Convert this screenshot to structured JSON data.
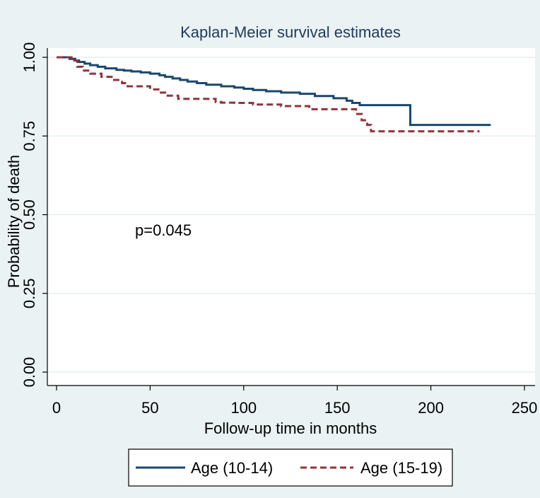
{
  "chart_data": {
    "type": "line",
    "title": "Kaplan-Meier survival estimates",
    "xlabel": "Follow-up time in months",
    "ylabel": "Probability of death",
    "xlim": [
      0,
      250
    ],
    "ylim": [
      0,
      1
    ],
    "x_ticks": [
      0,
      50,
      100,
      150,
      200,
      250
    ],
    "y_ticks": [
      0.0,
      0.25,
      0.5,
      0.75,
      1.0
    ],
    "x_tick_labels": [
      "0",
      "50",
      "100",
      "150",
      "200",
      "250"
    ],
    "y_tick_labels": [
      "0.00",
      "0.25",
      "0.50",
      "0.75",
      "1.00"
    ],
    "annotation": "p=0.045",
    "legend_position": "bottom",
    "series": [
      {
        "name": "Age (10-14)",
        "color": "#1a476f",
        "style": "solid",
        "steps": [
          [
            0,
            1.0
          ],
          [
            7,
            0.995
          ],
          [
            10,
            0.99
          ],
          [
            12,
            0.985
          ],
          [
            15,
            0.98
          ],
          [
            18,
            0.975
          ],
          [
            22,
            0.97
          ],
          [
            26,
            0.965
          ],
          [
            32,
            0.96
          ],
          [
            36,
            0.958
          ],
          [
            40,
            0.955
          ],
          [
            45,
            0.952
          ],
          [
            50,
            0.948
          ],
          [
            55,
            0.943
          ],
          [
            58,
            0.938
          ],
          [
            62,
            0.933
          ],
          [
            66,
            0.928
          ],
          [
            70,
            0.923
          ],
          [
            75,
            0.918
          ],
          [
            80,
            0.913
          ],
          [
            88,
            0.908
          ],
          [
            95,
            0.904
          ],
          [
            100,
            0.9
          ],
          [
            105,
            0.896
          ],
          [
            112,
            0.892
          ],
          [
            120,
            0.888
          ],
          [
            130,
            0.884
          ],
          [
            138,
            0.877
          ],
          [
            148,
            0.87
          ],
          [
            155,
            0.862
          ],
          [
            158,
            0.855
          ],
          [
            162,
            0.848
          ],
          [
            189,
            0.785
          ],
          [
            232,
            0.785
          ]
        ]
      },
      {
        "name": "Age (15-19)",
        "color": "#90353b",
        "style": "dashed",
        "steps": [
          [
            0,
            1.0
          ],
          [
            8,
            0.99
          ],
          [
            11,
            0.97
          ],
          [
            14,
            0.958
          ],
          [
            18,
            0.948
          ],
          [
            24,
            0.938
          ],
          [
            30,
            0.928
          ],
          [
            35,
            0.918
          ],
          [
            38,
            0.908
          ],
          [
            50,
            0.898
          ],
          [
            55,
            0.888
          ],
          [
            58,
            0.878
          ],
          [
            65,
            0.868
          ],
          [
            85,
            0.858
          ],
          [
            88,
            0.856
          ],
          [
            95,
            0.855
          ],
          [
            105,
            0.85
          ],
          [
            120,
            0.845
          ],
          [
            135,
            0.835
          ],
          [
            160,
            0.82
          ],
          [
            163,
            0.8
          ],
          [
            166,
            0.785
          ],
          [
            168,
            0.765
          ],
          [
            226,
            0.765
          ]
        ]
      }
    ]
  }
}
